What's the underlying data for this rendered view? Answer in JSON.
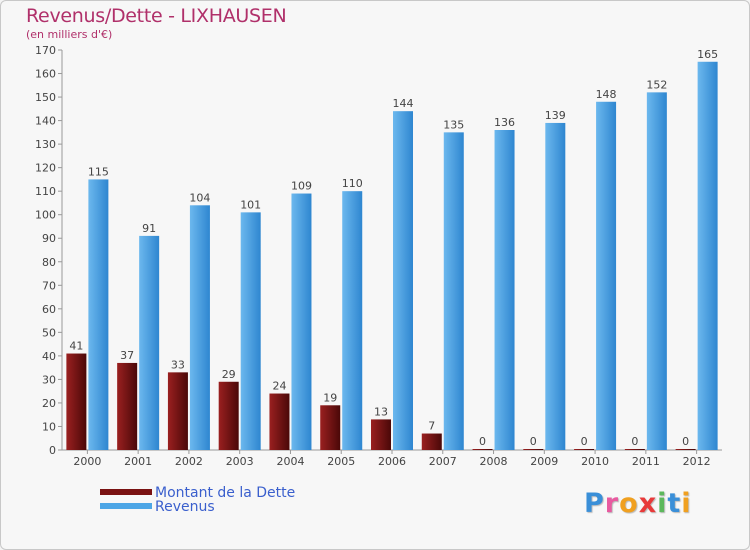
{
  "title": "Revenus/Dette - LIXHAUSEN",
  "subtitle": "(en milliers d'€)",
  "legend": {
    "items": [
      {
        "label": "Montant de la Dette",
        "color": "#7a1212"
      },
      {
        "label": "Revenus",
        "color": "#4da6e6"
      }
    ]
  },
  "logo": {
    "letters": [
      {
        "char": "P",
        "color": "#3a8fd8"
      },
      {
        "char": "r",
        "color": "#e85aa0"
      },
      {
        "char": "o",
        "color": "#f0a020"
      },
      {
        "char": "x",
        "color": "#e83a3a"
      },
      {
        "char": "i",
        "color": "#5cb85c"
      },
      {
        "char": "t",
        "color": "#3a8fd8"
      },
      {
        "char": "i",
        "color": "#f0a020"
      }
    ]
  },
  "chart_data": {
    "type": "bar",
    "categories": [
      "2000",
      "2001",
      "2002",
      "2003",
      "2004",
      "2005",
      "2006",
      "2007",
      "2008",
      "2009",
      "2010",
      "2011",
      "2012"
    ],
    "series": [
      {
        "name": "Montant de la Dette",
        "color": "#7a1212",
        "values": [
          41,
          37,
          33,
          29,
          24,
          19,
          13,
          7,
          0,
          0,
          0,
          0,
          0
        ]
      },
      {
        "name": "Revenus",
        "color": "#4da6e6",
        "values": [
          115,
          91,
          104,
          101,
          109,
          110,
          144,
          135,
          136,
          139,
          148,
          152,
          165
        ]
      }
    ],
    "title": "Revenus/Dette - LIXHAUSEN",
    "ylabel": "(en milliers d'€)",
    "ylim": [
      0,
      170
    ],
    "ytick_step": 10,
    "grid": false
  }
}
